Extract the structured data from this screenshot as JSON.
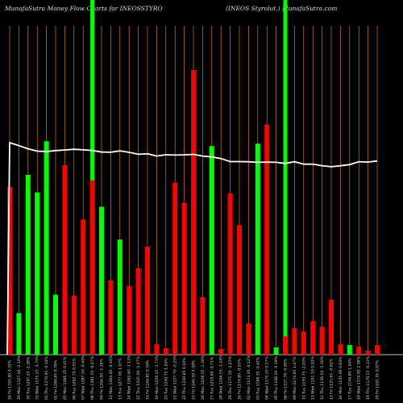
{
  "header": {
    "left": "MunafaSutra  Money Flow  Charts for INEOSSTYRO",
    "middle": "(INEOS Styrolut.) MunafaSutra.com"
  },
  "chart_data": {
    "type": "bar",
    "title": "MunafaSutra  Money Flow  Charts for INEOSSTYRO",
    "subtitle": "(INEOS Styrolut.) MunafaSutra.com",
    "categories": [
      "20 Fri 1181.55 0.97%",
      "19 Thu 1170.15 -0.33%",
      "18 Wed 1174.05 2.38%",
      "17 Tue 1146.80 1.04%",
      "16 Mon 1135.00 0.83%",
      "13 Fri 1125.65 -0.92%",
      "12 Thu 1136.10 -1.30%",
      "11 Wed 1151.10 0.03%",
      "10 Tue 1150.75 -2.03%",
      "09 Mon 1174.65 1.47%",
      "06 Fri 1157.70 -0.90%",
      "05 Thu 1168.20 -0.18%",
      "04 Wed 1170.35 0.17%",
      "03 Tue 1168.35 -0.42%",
      "02 Mon 1173.30 -0.12%",
      "30 Fri 1174.80 -0.03%",
      "29 Thu 1175.10 -2.45%",
      "28 Wed 1204.55 -1.24%",
      "27 Tue 1219.65 -0.71%",
      "26 Mon 1228.35 -1.30%",
      "23 Fri 1244.50 0.39%",
      "22 Thu 1239.65 0.16%",
      "21 Wed 1237.70 -0.25%",
      "20 Tue 1240.75 1.03%",
      "19 Mon 1228.15 -1.73%",
      "16 Fri 1249.85 0.39%",
      "15 Thu 1245.00 -1.47%",
      "14 Wed 1263.60 -1.12%",
      "13 Tue 1277.95 1.07%",
      "12 Mon 1264.40 -0.16%",
      "09 Fri 1266.50 -1.18%",
      "08 Thu 1281.55 -0.47%",
      "07 Wed 1287.50 -0.40%",
      "06 Tue 1292.70 0.51%",
      "05 Mon 1286.15 0.41%",
      "02 Fri 1280.85 0.78%",
      "01 Thu 1270.95 -0.34%",
      "31 Wed 1275.25 -1.70%",
      "30 Tue 1297.25 -2.28%",
      "29 Mon 1327.40 -2.10%",
      "26 Fri 1355.90 0.31%"
    ],
    "values": [
      210,
      52,
      225,
      203,
      267,
      75,
      237,
      74,
      169,
      218,
      185,
      93,
      144,
      86,
      108,
      135,
      13,
      8,
      215,
      190,
      356,
      72,
      261,
      7,
      202,
      162,
      39,
      264,
      288,
      9,
      23,
      33,
      29,
      42,
      35,
      69,
      13,
      12,
      10,
      5,
      12
    ],
    "colors": [
      "#ff0000",
      "#00ff00",
      "#00ff00",
      "#00ff00",
      "#00ff00",
      "#00ff00",
      "#ff0000",
      "#ff0000",
      "#ff0000",
      "#ff0000",
      "#00ff00",
      "#ff0000",
      "#00ff00",
      "#ff0000",
      "#ff0000",
      "#ff0000",
      "#ff0000",
      "#ff0000",
      "#ff0000",
      "#ff0000",
      "#ff0000",
      "#ff0000",
      "#00ff00",
      "#ff0000",
      "#ff0000",
      "#ff0000",
      "#ff0000",
      "#00ff00",
      "#ff0000",
      "#00ff00",
      "#ff0000",
      "#ff0000",
      "#ff0000",
      "#ff0000",
      "#ff0000",
      "#ff0000",
      "#ff0000",
      "#00ff00",
      "#ff0000",
      "#ff0000",
      "#ff0000"
    ],
    "bar_order_note_removed": "",
    "line_values": [
      1181.55,
      1170.15,
      1174.05,
      1146.8,
      1135,
      1125.65,
      1136.1,
      1151.1,
      1150.75,
      1174.65,
      1157.7,
      1168.2,
      1170.35,
      1168.35,
      1173.3,
      1174.8,
      1175.1,
      1204.55,
      1219.65,
      1228.35,
      1244.5,
      1239.65,
      1237.7,
      1240.75,
      1228.15,
      1249.85,
      1245,
      1263.6,
      1277.95,
      1264.4,
      1266.5,
      1281.55,
      1287.5,
      1292.7,
      1286.15,
      1280.85,
      1270.95,
      1275.25,
      1297.25,
      1327.4,
      1355.9
    ],
    "highlight_lines": [
      9,
      30
    ],
    "colors_meta": {
      "background": "#000000",
      "grid": "#ff8c00",
      "line": "#ffffff",
      "highlight": "#00ff00"
    }
  }
}
